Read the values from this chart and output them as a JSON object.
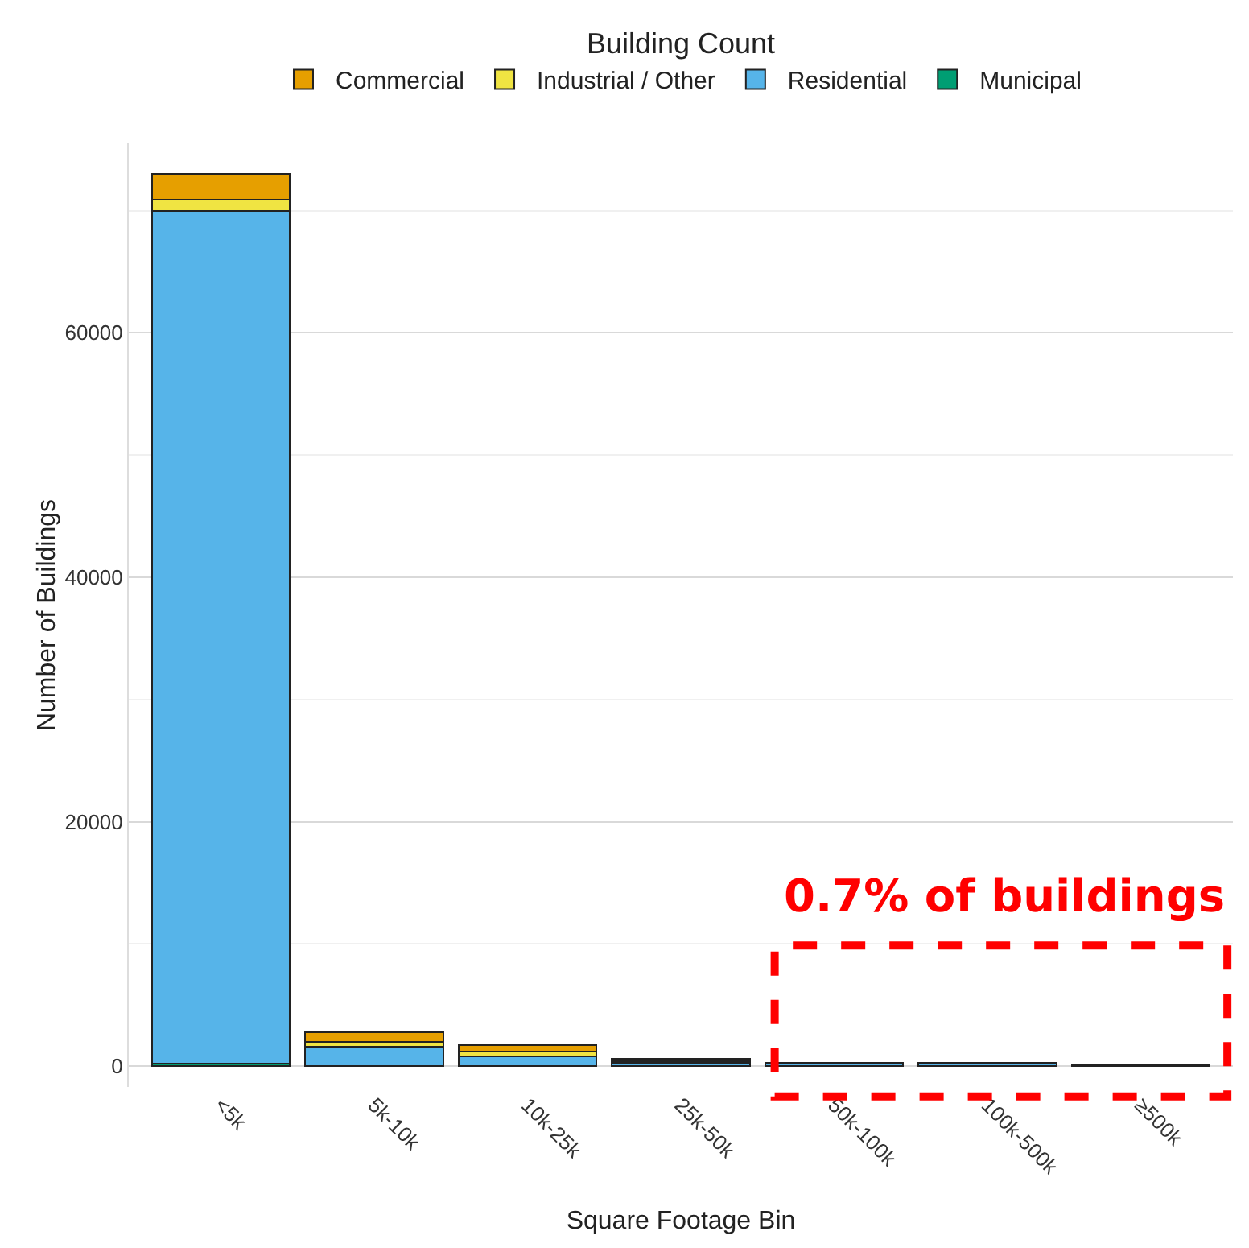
{
  "chart_data": {
    "type": "bar",
    "stacked": true,
    "legend_title": "Building Count",
    "xlabel": "Square Footage Bin",
    "ylabel": "Number of Buildings",
    "categories": [
      "<5k",
      "5k-10k",
      "10k-25k",
      "25k-50k",
      "50k-100k",
      "100k-500k",
      "≥500k"
    ],
    "series": [
      {
        "name": "Municipal",
        "color": "#009e73",
        "values": [
          200,
          null,
          null,
          null,
          null,
          null,
          null
        ]
      },
      {
        "name": "Residential",
        "color": "#56b4e9",
        "values": [
          69800,
          1600,
          800,
          300,
          300,
          300,
          100
        ]
      },
      {
        "name": "Industrial / Other",
        "color": "#f0e442",
        "values": [
          900,
          400,
          400,
          100,
          null,
          null,
          null
        ]
      },
      {
        "name": "Commercial",
        "color": "#e69f00",
        "values": [
          2100,
          800,
          500,
          200,
          null,
          null,
          null
        ]
      }
    ],
    "ylim": [
      -1700,
      75500
    ],
    "yticks": [
      0,
      20000,
      40000,
      60000
    ],
    "grid": "y",
    "legend": "top",
    "annotations": [
      "0.7% of buildings"
    ]
  }
}
